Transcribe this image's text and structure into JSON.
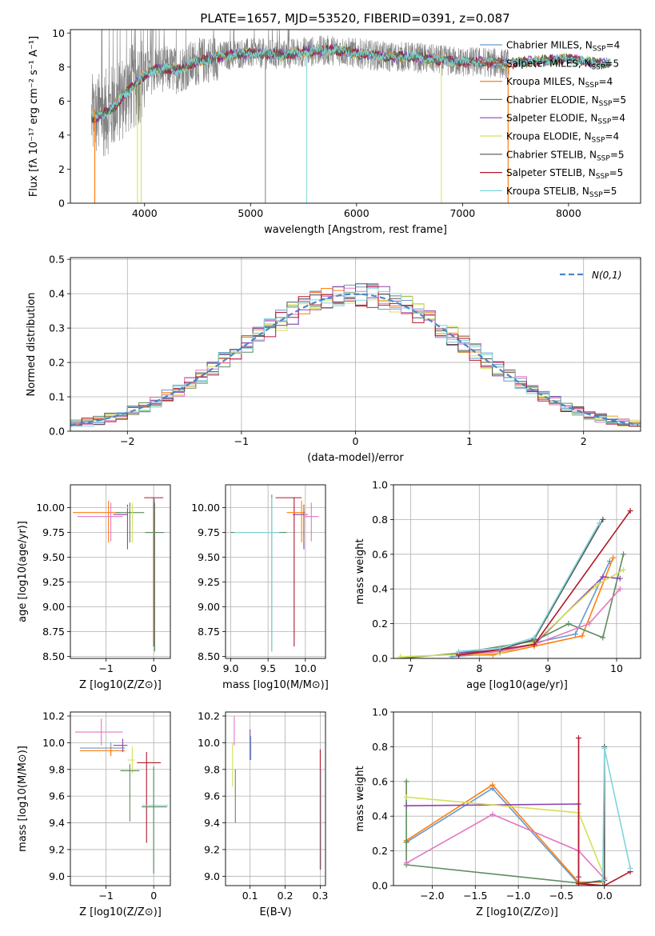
{
  "figure": {
    "title": "PLATE=1657, MJD=53520, FIBERID=0391, z=0.087"
  },
  "series_colors": [
    "#6699cc",
    "#ff7f0e",
    "#ff8c33",
    "#5e8c5e",
    "#8e44ad",
    "#d4e157",
    "#555555",
    "#b2182b",
    "#7fd4d9"
  ],
  "chart_data": [
    {
      "id": "spectrum",
      "type": "line",
      "title": "PLATE=1657, MJD=53520, FIBERID=0391, z=0.087",
      "xlabel": "wavelength [Angstrom, rest frame]",
      "ylabel": "Flux [fλ 10⁻¹⁷ erg cm⁻² s⁻¹ A⁻¹]",
      "xlim": [
        3300,
        8680
      ],
      "ylim": [
        0,
        10.2
      ],
      "xticks": [
        4000,
        5000,
        6000,
        7000,
        8000
      ],
      "yticks": [
        0,
        2,
        4,
        6,
        8,
        10
      ],
      "legend_position": "right",
      "legend": [
        {
          "name": "Chabrier MILES, N",
          "sub": "SSP",
          "val": "=4",
          "color": "#6699cc"
        },
        {
          "name": "Salpeter MILES, N",
          "sub": "SSP",
          "val": "=5",
          "color": "#d62728"
        },
        {
          "name": "Kroupa MILES, N",
          "sub": "SSP",
          "val": "=4",
          "color": "#ff7f0e"
        },
        {
          "name": "Chabrier ELODIE, N",
          "sub": "SSP",
          "val": "=5",
          "color": "#5e8c5e"
        },
        {
          "name": "Salpeter ELODIE, N",
          "sub": "SSP",
          "val": "=4",
          "color": "#8e44ad"
        },
        {
          "name": "Kroupa ELODIE, N",
          "sub": "SSP",
          "val": "=4",
          "color": "#d4e157"
        },
        {
          "name": "Chabrier STELIB, N",
          "sub": "SSP",
          "val": "=5",
          "color": "#555555"
        },
        {
          "name": "Salpeter STELIB, N",
          "sub": "SSP",
          "val": "=5",
          "color": "#b2182b"
        },
        {
          "name": "Kroupa STELIB, N",
          "sub": "SSP",
          "val": "=5",
          "color": "#7fd4d9"
        }
      ],
      "continuum": {
        "wavelength": [
          3500,
          3600,
          3700,
          3800,
          3900,
          4000,
          4100,
          4200,
          4300,
          4500,
          4700,
          4900,
          5100,
          5300,
          5500,
          5800,
          6000,
          6300,
          6500,
          6800,
          7000,
          7200,
          7400,
          7600,
          7800,
          8000,
          8200,
          8400
        ],
        "flux": [
          5.0,
          5.2,
          5.6,
          6.3,
          6.9,
          7.5,
          7.9,
          7.9,
          7.8,
          8.3,
          8.6,
          8.8,
          8.8,
          8.7,
          8.9,
          9.0,
          8.8,
          8.6,
          8.6,
          8.4,
          8.3,
          8.3,
          8.2,
          8.3,
          8.4,
          8.5,
          8.3,
          8.2
        ]
      }
    },
    {
      "id": "residuals",
      "type": "line",
      "xlabel": "(data-model)/error",
      "ylabel": "Normed distribution",
      "xlim": [
        -2.5,
        2.5
      ],
      "ylim": [
        0,
        0.505
      ],
      "xticks": [
        -2,
        -1,
        0,
        1,
        2
      ],
      "yticks": [
        0.0,
        0.1,
        0.2,
        0.3,
        0.4,
        0.5
      ],
      "legend_label": "N(0,1)",
      "reference": {
        "name": "N(0,1)",
        "mean": 0,
        "sigma": 1
      }
    },
    {
      "id": "age_vs_Z",
      "type": "scatter",
      "xlabel": "Z [log10(Z/Z⊙)]",
      "ylabel": "age  [log10(age/yr)]",
      "xlim": [
        -1.75,
        0.35
      ],
      "ylim": [
        8.48,
        10.23
      ],
      "xticks": [
        -1,
        0
      ],
      "yticks": [
        8.5,
        8.75,
        9.0,
        9.25,
        9.5,
        9.75,
        10.0
      ]
    },
    {
      "id": "age_vs_mass",
      "type": "scatter",
      "xlabel": "mass [log10(M/M⊙)]",
      "xlim": [
        8.93,
        10.27
      ],
      "ylim": [
        8.48,
        10.23
      ],
      "xticks": [
        9.0,
        9.5,
        10.0
      ],
      "yticks": [
        8.5,
        8.75,
        9.0,
        9.25,
        9.5,
        9.75,
        10.0
      ]
    },
    {
      "id": "weight_vs_age",
      "type": "line",
      "xlabel": "age  [log10(age/yr)]",
      "ylabel": "mass weight",
      "xlim": [
        6.75,
        10.35
      ],
      "ylim": [
        0,
        1.0
      ],
      "xticks": [
        7,
        8,
        9,
        10
      ],
      "yticks": [
        0.0,
        0.2,
        0.4,
        0.6,
        0.8,
        1.0
      ],
      "series": [
        {
          "color": "#6699cc",
          "x": [
            7.6,
            8.3,
            8.8,
            9.4,
            9.9
          ],
          "y": [
            0.01,
            0.03,
            0.09,
            0.14,
            0.56
          ]
        },
        {
          "color": "#ff7f0e",
          "x": [
            7.7,
            8.2,
            8.8,
            9.5,
            9.95
          ],
          "y": [
            0.02,
            0.02,
            0.07,
            0.13,
            0.58
          ]
        },
        {
          "color": "#5e8c5e",
          "x": [
            6.85,
            7.7,
            8.8,
            9.3,
            9.8,
            10.1
          ],
          "y": [
            0.0,
            0.03,
            0.1,
            0.2,
            0.12,
            0.6
          ]
        },
        {
          "color": "#8e44ad",
          "x": [
            7.7,
            8.3,
            8.8,
            9.8,
            10.05
          ],
          "y": [
            0.03,
            0.05,
            0.08,
            0.47,
            0.46
          ]
        },
        {
          "color": "#d4e157",
          "x": [
            6.85,
            8.3,
            8.8,
            9.7,
            10.1
          ],
          "y": [
            0.01,
            0.03,
            0.09,
            0.42,
            0.51
          ]
        },
        {
          "color": "#e377c2",
          "x": [
            7.7,
            8.3,
            8.8,
            9.6,
            10.05
          ],
          "y": [
            0.02,
            0.04,
            0.08,
            0.2,
            0.4
          ]
        },
        {
          "color": "#555555",
          "x": [
            7.7,
            8.3,
            8.8,
            9.8
          ],
          "y": [
            0.02,
            0.05,
            0.11,
            0.8
          ]
        },
        {
          "color": "#b2182b",
          "x": [
            7.7,
            8.3,
            8.8,
            10.2
          ],
          "y": [
            0.02,
            0.05,
            0.08,
            0.85
          ]
        },
        {
          "color": "#7fd4d9",
          "x": [
            7.7,
            8.3,
            8.8,
            9.75
          ],
          "y": [
            0.04,
            0.06,
            0.12,
            0.78
          ]
        }
      ]
    },
    {
      "id": "mass_vs_Z",
      "type": "scatter",
      "xlabel": "Z [log10(Z/Z⊙)]",
      "ylabel": "mass [log10(M/M⊙)]",
      "xlim": [
        -1.75,
        0.35
      ],
      "ylim": [
        8.93,
        10.23
      ],
      "xticks": [
        -1,
        0
      ],
      "yticks": [
        9.0,
        9.2,
        9.4,
        9.6,
        9.8,
        10.0,
        10.2
      ]
    },
    {
      "id": "mass_vs_EBV",
      "type": "scatter",
      "xlabel": "E(B-V)",
      "xlim": [
        0.03,
        0.315
      ],
      "ylim": [
        8.93,
        10.23
      ],
      "xticks": [
        0.1,
        0.2,
        0.3
      ],
      "yticks": [
        9.0,
        9.2,
        9.4,
        9.6,
        9.8,
        10.0,
        10.2
      ]
    },
    {
      "id": "weight_vs_Z",
      "type": "line",
      "xlabel": "Z [log10(Z/Z⊙)]",
      "ylabel": "mass weight",
      "xlim": [
        -2.45,
        0.42
      ],
      "ylim": [
        0,
        1.0
      ],
      "xticks": [
        -2.0,
        -1.5,
        -1.0,
        -0.5,
        0.0
      ],
      "yticks": [
        0.0,
        0.2,
        0.4,
        0.6,
        0.8,
        1.0
      ],
      "series": [
        {
          "color": "#6699cc",
          "x": [
            -2.3,
            -1.3,
            -0.3,
            -0.02
          ],
          "y": [
            0.25,
            0.56,
            0.01,
            0.03
          ]
        },
        {
          "color": "#ff7f0e",
          "x": [
            -2.3,
            -1.3,
            -0.3,
            -0.02
          ],
          "y": [
            0.26,
            0.58,
            0.02,
            0.02
          ]
        },
        {
          "color": "#5e8c5e",
          "x": [
            -2.3,
            -2.3,
            -2.3,
            -0.02
          ],
          "y": [
            0.6,
            0.25,
            0.12,
            0.0
          ]
        },
        {
          "color": "#8e44ad",
          "x": [
            -2.3,
            -0.3,
            -0.3
          ],
          "y": [
            0.46,
            0.47,
            0.05
          ]
        },
        {
          "color": "#d4e157",
          "x": [
            -2.3,
            -0.3,
            0.0
          ],
          "y": [
            0.51,
            0.42,
            0.05
          ]
        },
        {
          "color": "#e377c2",
          "x": [
            -2.3,
            -1.3,
            -0.3,
            0.0
          ],
          "y": [
            0.13,
            0.41,
            0.2,
            0.04
          ]
        },
        {
          "color": "#555555",
          "x": [
            -0.3,
            0.0,
            0.0
          ],
          "y": [
            0.01,
            0.03,
            0.8
          ]
        },
        {
          "color": "#b2182b",
          "x": [
            -0.3,
            -0.3,
            0.0,
            0.3
          ],
          "y": [
            0.85,
            0.01,
            0.0,
            0.08
          ]
        },
        {
          "color": "#7fd4d9",
          "x": [
            -0.02,
            0.0,
            0.3
          ],
          "y": [
            0.03,
            0.79,
            0.1
          ]
        }
      ]
    }
  ]
}
